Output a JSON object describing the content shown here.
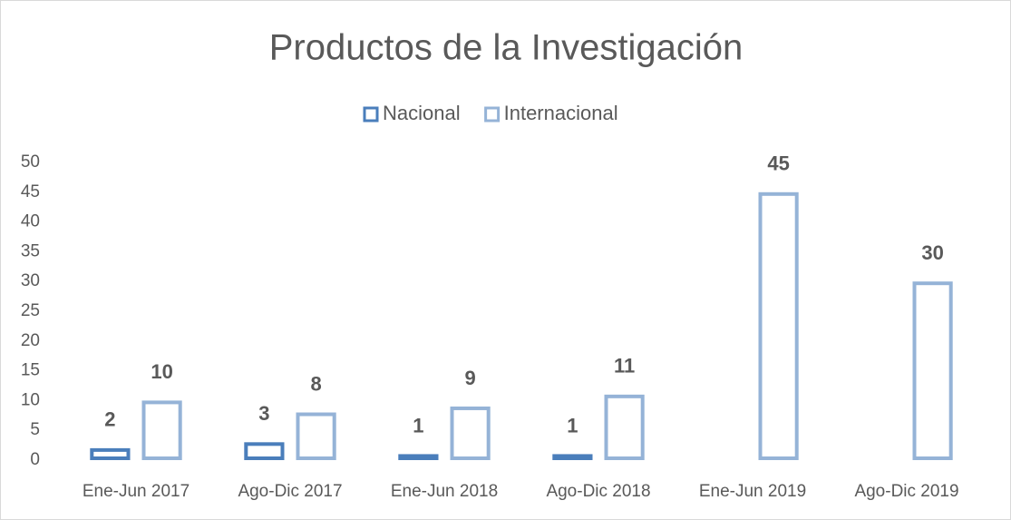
{
  "chart_data": {
    "type": "bar",
    "title": "Productos de la Investigación",
    "categories": [
      "Ene-Jun 2017",
      "Ago-Dic 2017",
      "Ene-Jun 2018",
      "Ago-Dic 2018",
      "Ene-Jun 2019",
      "Ago-Dic 2019"
    ],
    "series": [
      {
        "name": "Nacional",
        "color": "#4a7ebb",
        "values": [
          2,
          3,
          1,
          1,
          null,
          null
        ]
      },
      {
        "name": "Internacional",
        "color": "#95b3d7",
        "values": [
          10,
          8,
          9,
          11,
          45,
          30
        ]
      }
    ],
    "ylim": [
      0,
      50
    ],
    "yticks": [
      0,
      5,
      10,
      15,
      20,
      25,
      30,
      35,
      40,
      45,
      50
    ],
    "grid": false,
    "legend": "top"
  }
}
